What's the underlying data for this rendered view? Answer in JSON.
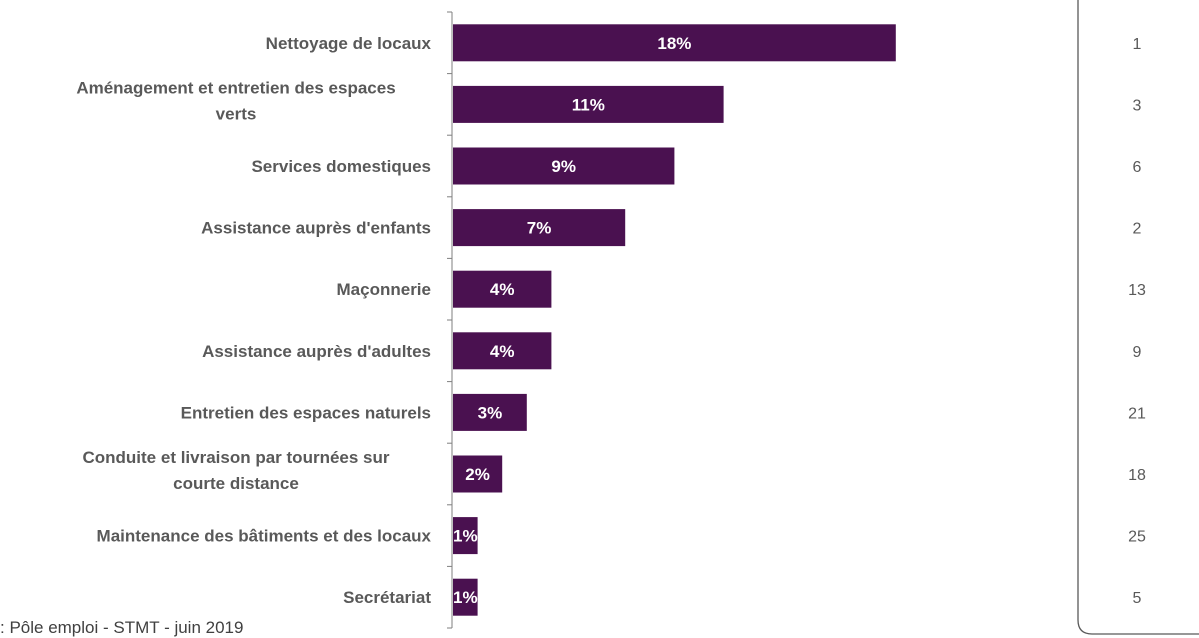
{
  "chart_data": {
    "type": "bar",
    "orientation": "horizontal",
    "title": "",
    "xlabel": "",
    "ylabel": "",
    "xlim": [
      0,
      18
    ],
    "grid": false,
    "legend": "none",
    "colors": {
      "bar": "#4a1150",
      "bar_label": "#ffffff",
      "category_label": "#595959"
    },
    "categories": [
      [
        "Nettoyage de locaux"
      ],
      [
        "Aménagement et entretien des espaces",
        "verts"
      ],
      [
        "Services domestiques"
      ],
      [
        "Assistance auprès d'enfants"
      ],
      [
        "Maçonnerie"
      ],
      [
        "Assistance auprès d'adultes"
      ],
      [
        "Entretien des espaces naturels"
      ],
      [
        "Conduite et livraison par tournées sur",
        "courte distance"
      ],
      [
        "Maintenance des bâtiments et des locaux"
      ],
      [
        "Secrétariat"
      ]
    ],
    "values": [
      18,
      11,
      9,
      7,
      4,
      4,
      3,
      2,
      1,
      1
    ],
    "value_labels": [
      "18%",
      "11%",
      "9%",
      "7%",
      "4%",
      "4%",
      "3%",
      "2%",
      "1%",
      "1%"
    ],
    "ranks": [
      "1",
      "3",
      "6",
      "2",
      "13",
      "9",
      "21",
      "18",
      "25",
      "5"
    ]
  },
  "source": ": Pôle emploi - STMT - juin 2019"
}
